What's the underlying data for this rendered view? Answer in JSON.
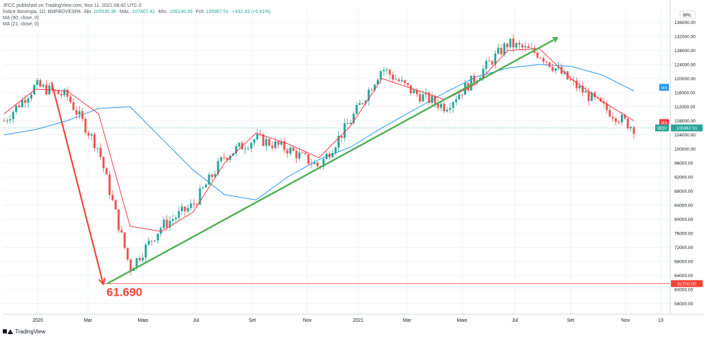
{
  "publisher": "JFCC published on TradingView.com, Nov 11, 2021 08:42 UTC-3",
  "legend": {
    "symbol": "Índice Ibovespa, 1D, BMFBOVESPA",
    "open_label": "Abr",
    "open_value": "105535.36",
    "high_label": "Máx.",
    "high_value": "107407.42",
    "low_label": "Mín.",
    "low_value": "105140.39",
    "close_label": "Fch",
    "close_value": "105967.51",
    "change": "+432.43 (+0.41%)",
    "ma90": "MA (90, close, 0)",
    "ma21": "MA (21, close, 0)"
  },
  "currency": "BRL",
  "footer": {
    "brand": "TradingView"
  },
  "annotation_value": "61.690",
  "badges": {
    "ma90_label": "MA",
    "ma21_label": "MA",
    "price_label": "IBOV",
    "price_value": "105967.51",
    "low_level_value": "61700.00"
  },
  "colors": {
    "up": "#26a69a",
    "down": "#ef5350",
    "ma90": "#2196f3",
    "ma21": "#f23645",
    "trendline": "#4caf50",
    "drop_arrow": "#f44336",
    "price_badge": "#26a69a"
  },
  "chart_data": {
    "type": "line",
    "title": "",
    "ylim": [
      53000,
      140000
    ],
    "y_ticks": [
      "136000.00",
      "132000.00",
      "128000.00",
      "124000.00",
      "120000.00",
      "116000.00",
      "112000.00",
      "108000.00",
      "104000.00",
      "100000.00",
      "96000.00",
      "92000.00",
      "88000.00",
      "84000.00",
      "80000.00",
      "76000.00",
      "72000.00",
      "68000.00",
      "64000.00",
      "60000.00",
      "56000.00"
    ],
    "x_ticks": [
      "2020",
      "Mar",
      "Maio",
      "Jul",
      "Set",
      "Nov",
      "2021",
      "Mar",
      "Maio",
      "Jul",
      "Set",
      "Nov",
      "13"
    ],
    "series": [
      {
        "name": "MA (90, close, 0)",
        "values": [
          104000,
          105500,
          108000,
          111500,
          112000,
          103000,
          94000,
          87000,
          85500,
          92000,
          97000,
          100500,
          106000,
          111000,
          116000,
          120500,
          123000,
          124000,
          123500,
          121000,
          116500
        ]
      },
      {
        "name": "MA (21, close, 0)",
        "values": [
          110000,
          117000,
          116500,
          110000,
          78000,
          76500,
          82000,
          96000,
          104500,
          101500,
          97500,
          106500,
          120000,
          117000,
          114000,
          118500,
          128000,
          128500,
          120000,
          113500,
          108000
        ]
      },
      {
        "name": "IBOV close",
        "values": [
          108000,
          118000,
          115000,
          100000,
          66000,
          78000,
          84000,
          98000,
          103000,
          100000,
          95000,
          108000,
          123000,
          116000,
          112000,
          120500,
          130000,
          127000,
          119000,
          112000,
          106000
        ]
      }
    ],
    "trendline": {
      "from": [
        "Mar 2020",
        61690
      ],
      "to": [
        "Jul 2021",
        131500
      ]
    },
    "drop_arrow": {
      "from": [
        "Jan 2020",
        119000
      ],
      "to": [
        "Mar 2020",
        61690
      ]
    },
    "horizontal_level": 61700,
    "last_price": 105967.51,
    "grid": true,
    "legend_position": "top-left"
  }
}
